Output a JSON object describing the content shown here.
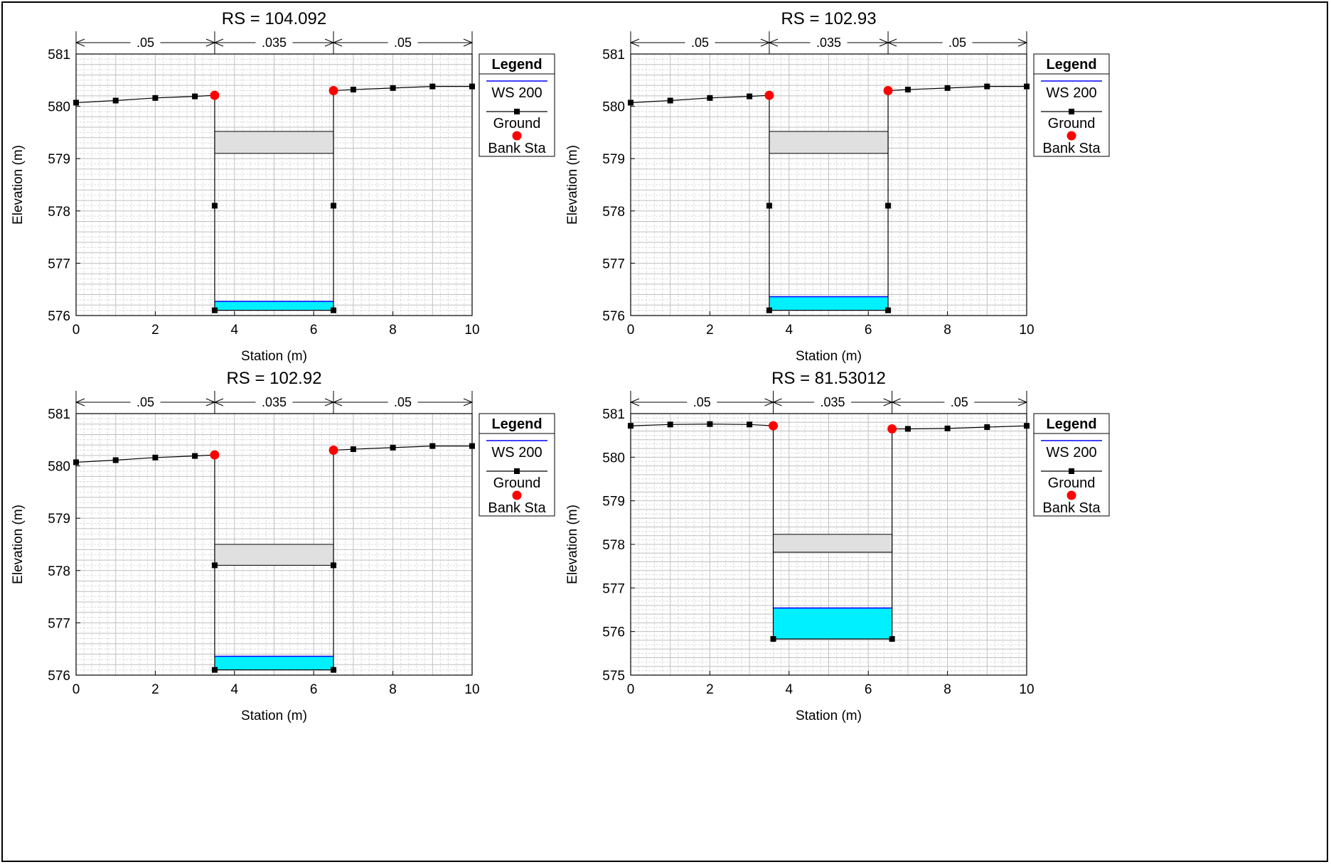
{
  "chart_data": [
    {
      "type": "line",
      "title": "RS = 104.092",
      "xlabel": "Station (m)",
      "ylabel": "Elevation (m)",
      "xlim": [
        0,
        10
      ],
      "ylim": [
        576,
        581
      ],
      "xticks": [
        "0",
        "2",
        "4",
        "6",
        "8",
        "10"
      ],
      "yticks": [
        "576",
        "577",
        "578",
        "579",
        "580",
        "581"
      ],
      "grid": true,
      "legend_position": "right",
      "mannings_n": [
        {
          "x0": 0,
          "x1": 3.5,
          "label": ".05"
        },
        {
          "x0": 3.5,
          "x1": 6.5,
          "label": ".035"
        },
        {
          "x0": 6.5,
          "x1": 10,
          "label": ".05"
        }
      ],
      "ground": [
        [
          0,
          580.07
        ],
        [
          1,
          580.11
        ],
        [
          2,
          580.16
        ],
        [
          3,
          580.19
        ],
        [
          3.5,
          580.21
        ],
        [
          3.5,
          578.1
        ],
        [
          3.5,
          576.1
        ],
        [
          6.5,
          576.1
        ],
        [
          6.5,
          578.1
        ],
        [
          6.5,
          580.3
        ],
        [
          7,
          580.32
        ],
        [
          8,
          580.35
        ],
        [
          9,
          580.38
        ],
        [
          10,
          580.38
        ]
      ],
      "ground_markers": [
        [
          0,
          580.07
        ],
        [
          1,
          580.11
        ],
        [
          2,
          580.16
        ],
        [
          3,
          580.19
        ],
        [
          3.5,
          578.1
        ],
        [
          3.5,
          576.1
        ],
        [
          6.5,
          576.1
        ],
        [
          6.5,
          578.1
        ],
        [
          7,
          580.32
        ],
        [
          8,
          580.35
        ],
        [
          9,
          580.38
        ],
        [
          10,
          580.38
        ]
      ],
      "bank_stations": [
        [
          3.5,
          580.21
        ],
        [
          6.5,
          580.3
        ]
      ],
      "water_surface": {
        "elevation": 576.27,
        "x0": 3.5,
        "x1": 6.5,
        "bottom": 576.1
      },
      "obstruction": {
        "x0": 3.5,
        "x1": 6.5,
        "low": 579.1,
        "high": 579.52
      },
      "legend": {
        "title": "Legend",
        "items": [
          "WS 200",
          "Ground",
          "Bank Sta"
        ]
      }
    },
    {
      "type": "line",
      "title": "RS = 102.93",
      "xlabel": "Station (m)",
      "ylabel": "Elevation (m)",
      "xlim": [
        0,
        10
      ],
      "ylim": [
        576,
        581
      ],
      "xticks": [
        "0",
        "2",
        "4",
        "6",
        "8",
        "10"
      ],
      "yticks": [
        "576",
        "577",
        "578",
        "579",
        "580",
        "581"
      ],
      "grid": true,
      "legend_position": "right",
      "mannings_n": [
        {
          "x0": 0,
          "x1": 3.5,
          "label": ".05"
        },
        {
          "x0": 3.5,
          "x1": 6.5,
          "label": ".035"
        },
        {
          "x0": 6.5,
          "x1": 10,
          "label": ".05"
        }
      ],
      "ground": [
        [
          0,
          580.07
        ],
        [
          1,
          580.11
        ],
        [
          2,
          580.16
        ],
        [
          3,
          580.19
        ],
        [
          3.5,
          580.21
        ],
        [
          3.5,
          578.1
        ],
        [
          3.5,
          576.1
        ],
        [
          6.5,
          576.1
        ],
        [
          6.5,
          578.1
        ],
        [
          6.5,
          580.3
        ],
        [
          7,
          580.32
        ],
        [
          8,
          580.35
        ],
        [
          9,
          580.38
        ],
        [
          10,
          580.38
        ]
      ],
      "ground_markers": [
        [
          0,
          580.07
        ],
        [
          1,
          580.11
        ],
        [
          2,
          580.16
        ],
        [
          3,
          580.19
        ],
        [
          3.5,
          578.1
        ],
        [
          3.5,
          576.1
        ],
        [
          6.5,
          576.1
        ],
        [
          6.5,
          578.1
        ],
        [
          7,
          580.32
        ],
        [
          8,
          580.35
        ],
        [
          9,
          580.38
        ],
        [
          10,
          580.38
        ]
      ],
      "bank_stations": [
        [
          3.5,
          580.21
        ],
        [
          6.5,
          580.3
        ]
      ],
      "water_surface": {
        "elevation": 576.36,
        "x0": 3.5,
        "x1": 6.5,
        "bottom": 576.1
      },
      "obstruction": {
        "x0": 3.5,
        "x1": 6.5,
        "low": 579.1,
        "high": 579.52
      },
      "legend": {
        "title": "Legend",
        "items": [
          "WS 200",
          "Ground",
          "Bank Sta"
        ]
      }
    },
    {
      "type": "line",
      "title": "RS = 102.92",
      "xlabel": "Station (m)",
      "ylabel": "Elevation (m)",
      "xlim": [
        0,
        10
      ],
      "ylim": [
        576,
        581
      ],
      "xticks": [
        "0",
        "2",
        "4",
        "6",
        "8",
        "10"
      ],
      "yticks": [
        "576",
        "577",
        "578",
        "579",
        "580",
        "581"
      ],
      "grid": true,
      "legend_position": "right",
      "mannings_n": [
        {
          "x0": 0,
          "x1": 3.5,
          "label": ".05"
        },
        {
          "x0": 3.5,
          "x1": 6.5,
          "label": ".035"
        },
        {
          "x0": 6.5,
          "x1": 10,
          "label": ".05"
        }
      ],
      "ground": [
        [
          0,
          580.07
        ],
        [
          1,
          580.11
        ],
        [
          2,
          580.16
        ],
        [
          3,
          580.19
        ],
        [
          3.5,
          580.21
        ],
        [
          3.5,
          578.1
        ],
        [
          3.5,
          576.1
        ],
        [
          6.5,
          576.1
        ],
        [
          6.5,
          578.1
        ],
        [
          6.5,
          580.3
        ],
        [
          7,
          580.32
        ],
        [
          8,
          580.35
        ],
        [
          9,
          580.38
        ],
        [
          10,
          580.38
        ]
      ],
      "ground_markers": [
        [
          0,
          580.07
        ],
        [
          1,
          580.11
        ],
        [
          2,
          580.16
        ],
        [
          3,
          580.19
        ],
        [
          3.5,
          578.1
        ],
        [
          3.5,
          576.1
        ],
        [
          6.5,
          576.1
        ],
        [
          6.5,
          578.1
        ],
        [
          7,
          580.32
        ],
        [
          8,
          580.35
        ],
        [
          9,
          580.38
        ],
        [
          10,
          580.38
        ]
      ],
      "bank_stations": [
        [
          3.5,
          580.21
        ],
        [
          6.5,
          580.3
        ]
      ],
      "water_surface": {
        "elevation": 576.36,
        "x0": 3.5,
        "x1": 6.5,
        "bottom": 576.1
      },
      "obstruction": {
        "x0": 3.5,
        "x1": 6.5,
        "low": 578.1,
        "high": 578.5
      },
      "legend": {
        "title": "Legend",
        "items": [
          "WS 200",
          "Ground",
          "Bank Sta"
        ]
      }
    },
    {
      "type": "line",
      "title": "RS = 81.53012",
      "xlabel": "Station (m)",
      "ylabel": "Elevation (m)",
      "xlim": [
        0,
        10
      ],
      "ylim": [
        575,
        581
      ],
      "xticks": [
        "0",
        "2",
        "4",
        "6",
        "8",
        "10"
      ],
      "yticks": [
        "575",
        "576",
        "577",
        "578",
        "579",
        "580",
        "581"
      ],
      "grid": true,
      "legend_position": "right",
      "mannings_n": [
        {
          "x0": 0,
          "x1": 3.6,
          "label": ".05"
        },
        {
          "x0": 3.6,
          "x1": 6.6,
          "label": ".035"
        },
        {
          "x0": 6.6,
          "x1": 10,
          "label": ".05"
        }
      ],
      "ground": [
        [
          0,
          580.72
        ],
        [
          1,
          580.75
        ],
        [
          2,
          580.76
        ],
        [
          3,
          580.75
        ],
        [
          3.6,
          580.72
        ],
        [
          3.6,
          575.83
        ],
        [
          6.6,
          575.83
        ],
        [
          6.6,
          580.65
        ],
        [
          7,
          580.65
        ],
        [
          8,
          580.66
        ],
        [
          9,
          580.69
        ],
        [
          10,
          580.72
        ]
      ],
      "ground_markers": [
        [
          0,
          580.72
        ],
        [
          1,
          580.75
        ],
        [
          2,
          580.76
        ],
        [
          3,
          580.75
        ],
        [
          3.6,
          575.83
        ],
        [
          6.6,
          575.83
        ],
        [
          7,
          580.65
        ],
        [
          8,
          580.66
        ],
        [
          9,
          580.69
        ],
        [
          10,
          580.72
        ]
      ],
      "bank_stations": [
        [
          3.6,
          580.72
        ],
        [
          6.6,
          580.65
        ]
      ],
      "water_surface": {
        "elevation": 576.54,
        "x0": 3.6,
        "x1": 6.6,
        "bottom": 575.83
      },
      "obstruction": {
        "x0": 3.6,
        "x1": 6.6,
        "low": 577.82,
        "high": 578.23
      },
      "legend": {
        "title": "Legend",
        "items": [
          "WS 200",
          "Ground",
          "Bank Sta"
        ]
      }
    }
  ],
  "colors": {
    "water_fill": "#00f0ff",
    "water_line": "#0000ff",
    "ground": "#000000",
    "bank_station": "#ff0000",
    "obstruction_fill": "#e0e0e0",
    "grid_major": "#bfbfbf",
    "grid_minor": "#dcdcdc"
  }
}
